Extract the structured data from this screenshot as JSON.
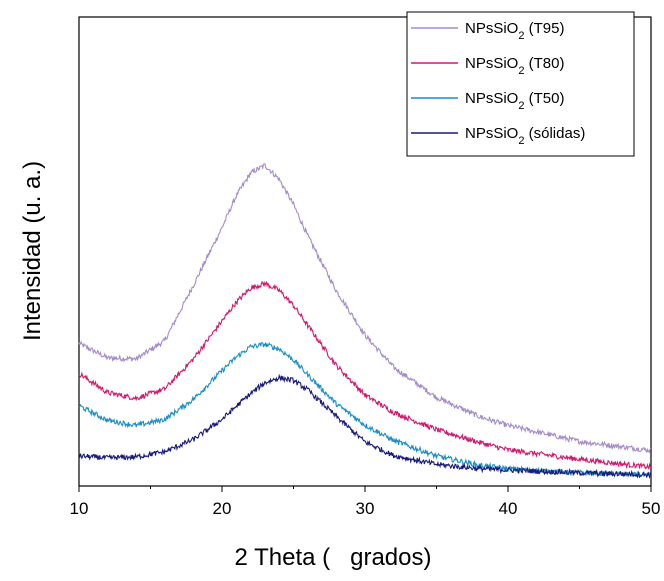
{
  "chart_data": {
    "type": "line",
    "xlabel": "2 Theta (   grados)",
    "ylabel": "Intensidad (u. a.)",
    "xlim": [
      10,
      50
    ],
    "x_ticks": [
      10,
      20,
      30,
      40,
      50
    ],
    "x_tick_labels": [
      "10",
      "20",
      "30",
      "40",
      "50"
    ],
    "y_ticks_shown": false,
    "ylim": [
      0,
      1
    ],
    "grid": false,
    "legend_position": "top-right",
    "x": [
      10,
      12,
      14,
      16,
      18,
      20,
      21,
      22,
      23,
      24,
      25,
      26,
      28,
      30,
      32,
      35,
      38,
      40,
      45,
      50
    ],
    "series": [
      {
        "name": "NPsSiO2 (T95)",
        "legend_main": "NPsSiO",
        "legend_sub": "2",
        "legend_suffix": " (T95)",
        "color": "#a48cc8",
        "values": [
          0.304,
          0.273,
          0.271,
          0.31,
          0.428,
          0.551,
          0.619,
          0.667,
          0.684,
          0.654,
          0.6,
          0.533,
          0.416,
          0.322,
          0.253,
          0.189,
          0.148,
          0.129,
          0.095,
          0.076
        ]
      },
      {
        "name": "NPsSiO2 (T80)",
        "legend_main": "NPsSiO",
        "legend_sub": "2",
        "legend_suffix": " (T80)",
        "color": "#cc1a6e",
        "values": [
          0.24,
          0.199,
          0.187,
          0.207,
          0.271,
          0.352,
          0.392,
          0.422,
          0.432,
          0.417,
          0.385,
          0.342,
          0.257,
          0.194,
          0.157,
          0.12,
          0.093,
          0.077,
          0.057,
          0.04
        ]
      },
      {
        "name": "NPsSiO2 (T50)",
        "legend_main": "NPsSiO",
        "legend_sub": "2",
        "legend_suffix": " (T50)",
        "color": "#1c8ec4",
        "values": [
          0.171,
          0.14,
          0.129,
          0.142,
          0.185,
          0.246,
          0.275,
          0.297,
          0.302,
          0.292,
          0.269,
          0.237,
          0.175,
          0.13,
          0.097,
          0.064,
          0.044,
          0.037,
          0.028,
          0.024
        ]
      },
      {
        "name": "NPsSiO2 (sólidas)",
        "legend_main": "NPsSiO",
        "legend_sub": "2",
        "legend_suffix": " (sólidas)",
        "color": "#1a1a7a",
        "values": [
          0.064,
          0.06,
          0.062,
          0.073,
          0.099,
          0.142,
          0.17,
          0.197,
          0.22,
          0.231,
          0.225,
          0.205,
          0.148,
          0.094,
          0.065,
          0.046,
          0.037,
          0.034,
          0.028,
          0.024
        ]
      }
    ]
  }
}
